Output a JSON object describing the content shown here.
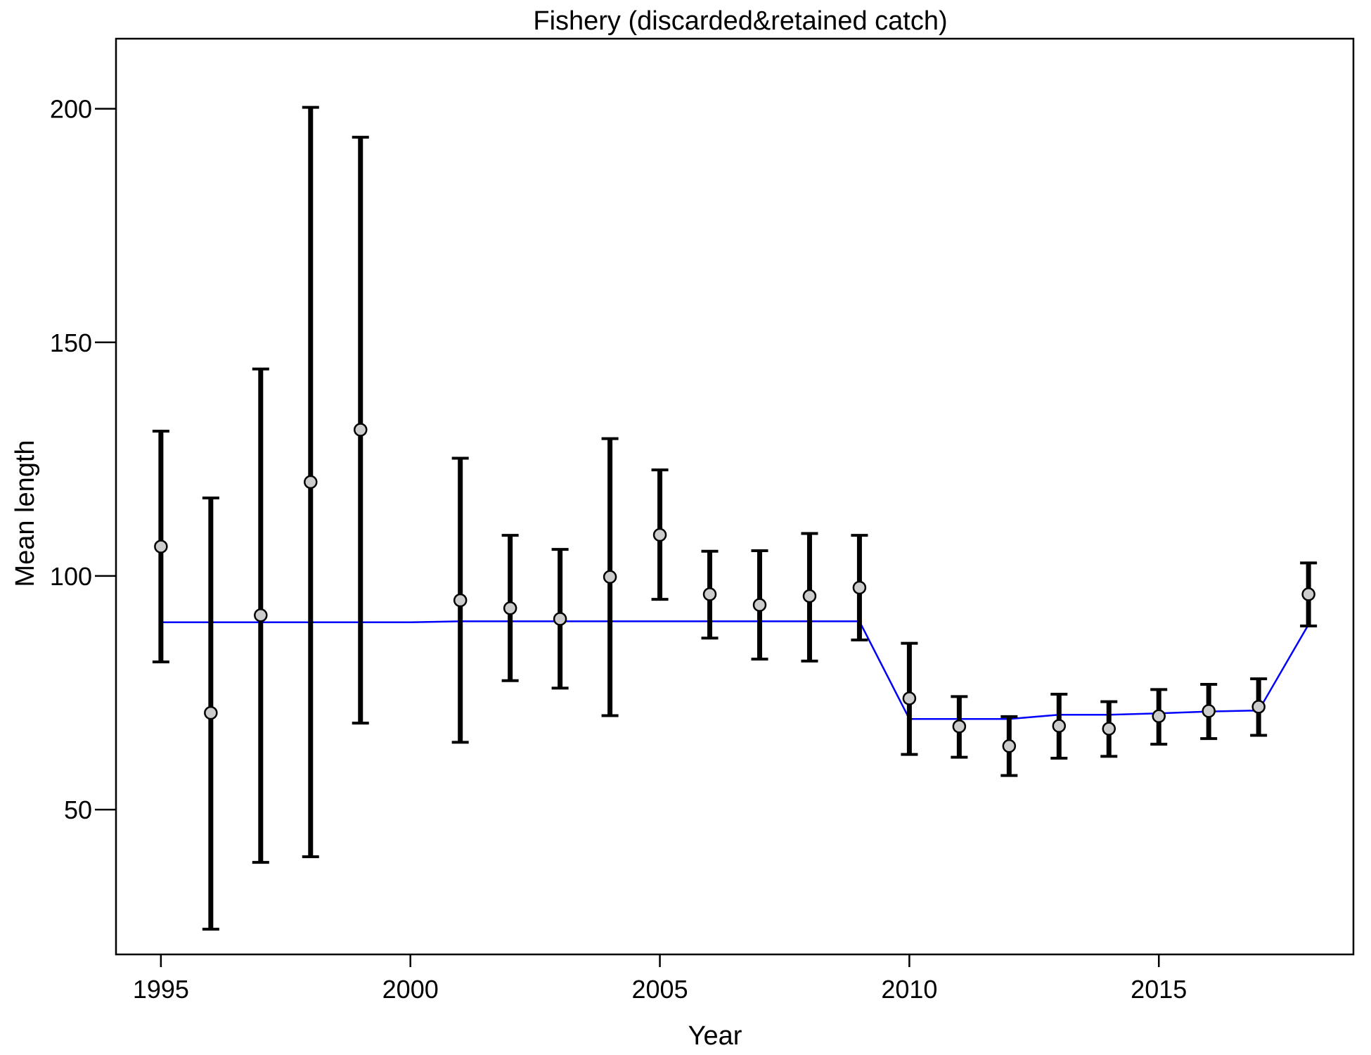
{
  "chart_data": {
    "type": "scatter",
    "title": "Fishery (discarded&retained catch)",
    "xlabel": "Year",
    "ylabel": "Mean length",
    "xlim": [
      1994.1,
      2018.9
    ],
    "ylim": [
      19,
      215
    ],
    "xticks": [
      1995,
      2000,
      2005,
      2010,
      2015
    ],
    "yticks": [
      50,
      100,
      150,
      200
    ],
    "grid": false,
    "colors": {
      "observed_fill": "#cccccc",
      "errorbar": "#000000",
      "expected_line": "#0000ff"
    },
    "observed": {
      "x": [
        1995,
        1996,
        1997,
        1998,
        1999,
        2001,
        2002,
        2003,
        2004,
        2005,
        2006,
        2007,
        2008,
        2009,
        2010,
        2011,
        2012,
        2013,
        2014,
        2015,
        2016,
        2017,
        2018
      ],
      "y": [
        106.3,
        70.7,
        91.6,
        120.1,
        131.3,
        94.8,
        93.1,
        90.8,
        99.8,
        108.8,
        96.1,
        93.8,
        95.7,
        97.5,
        73.8,
        67.8,
        63.6,
        67.9,
        67.3,
        70.0,
        71.1,
        72.0,
        96.1
      ],
      "lower": [
        81.6,
        24.4,
        38.7,
        39.9,
        68.5,
        64.4,
        77.6,
        76.0,
        70.1,
        95.0,
        86.7,
        82.2,
        81.8,
        86.3,
        61.8,
        61.2,
        57.3,
        61.0,
        61.4,
        64.0,
        65.2,
        65.9,
        89.3
      ],
      "upper": [
        131.0,
        116.7,
        144.3,
        200.3,
        193.9,
        125.2,
        108.7,
        105.7,
        129.4,
        122.7,
        105.3,
        105.4,
        109.1,
        108.7,
        85.6,
        74.2,
        69.9,
        74.7,
        73.1,
        75.7,
        76.8,
        78.0,
        102.8
      ]
    },
    "expected": {
      "x": [
        1995,
        1996,
        1997,
        1998,
        1999,
        2000,
        2001,
        2002,
        2003,
        2004,
        2005,
        2006,
        2007,
        2008,
        2009,
        2010,
        2011,
        2012,
        2013,
        2014,
        2015,
        2016,
        2017,
        2018
      ],
      "y": [
        90.1,
        90.1,
        90.1,
        90.1,
        90.1,
        90.1,
        90.3,
        90.3,
        90.3,
        90.3,
        90.3,
        90.3,
        90.3,
        90.3,
        90.3,
        69.4,
        69.4,
        69.4,
        70.3,
        70.3,
        70.6,
        71.0,
        71.2,
        89.6
      ]
    }
  }
}
